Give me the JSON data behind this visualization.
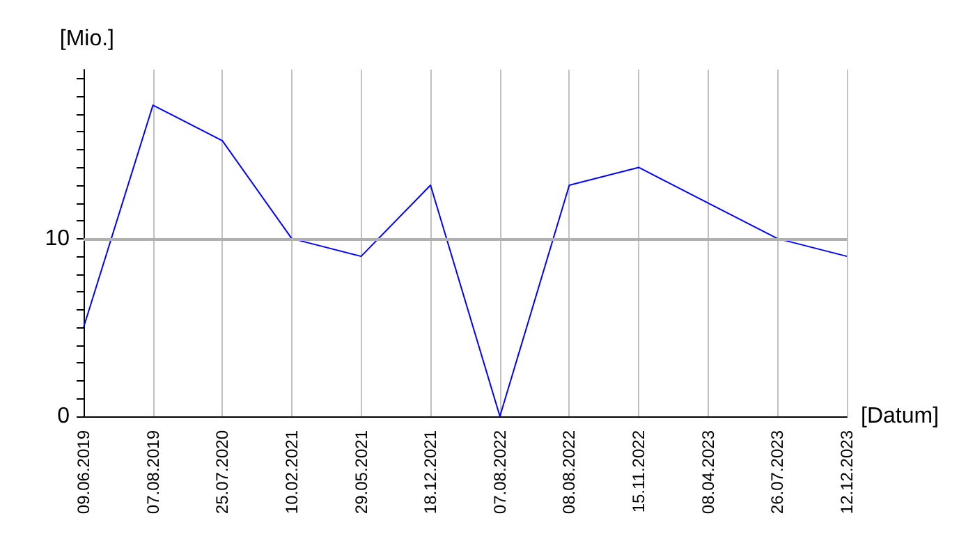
{
  "chart_data": {
    "type": "line",
    "xlabel": "[Datum]",
    "ylabel": "[Mio.]",
    "categories": [
      "09.06.2019",
      "07.08.2019",
      "25.07.2020",
      "10.02.2021",
      "29.05.2021",
      "18.12.2021",
      "07.08.2022",
      "08.08.2022",
      "15.11.2022",
      "08.04.2023",
      "26.07.2023",
      "12.12.2023"
    ],
    "series": [
      {
        "color": "#0000ff",
        "values": [
          5,
          17.5,
          15.5,
          10,
          9,
          13,
          0,
          13,
          14,
          12,
          10,
          9
        ]
      }
    ],
    "ylim": [
      0,
      19.5
    ],
    "yticks": [
      0,
      {
        "value": 1,
        "label": null
      },
      {
        "value": 2,
        "label": null
      },
      {
        "value": 3,
        "label": null
      },
      {
        "value": 4,
        "label": null
      },
      {
        "value": 5,
        "label": null
      },
      {
        "value": 6,
        "label": null
      },
      {
        "value": 7,
        "label": null
      },
      {
        "value": 8,
        "label": null
      },
      {
        "value": 9,
        "label": null
      },
      10,
      {
        "value": 11,
        "label": null
      },
      {
        "value": 12,
        "label": null
      },
      {
        "value": 13,
        "label": null
      },
      {
        "value": 14,
        "label": null
      },
      {
        "value": 15,
        "label": null
      },
      {
        "value": 16,
        "label": null
      },
      {
        "value": 17,
        "label": null
      },
      {
        "value": 18,
        "label": null
      },
      {
        "value": 19,
        "label": null
      }
    ],
    "grid": "x",
    "ref_lines": [
      {
        "axis": "y",
        "value": 10,
        "color": "#b0b0b0"
      }
    ],
    "marker": "none",
    "line_style": "solid"
  }
}
